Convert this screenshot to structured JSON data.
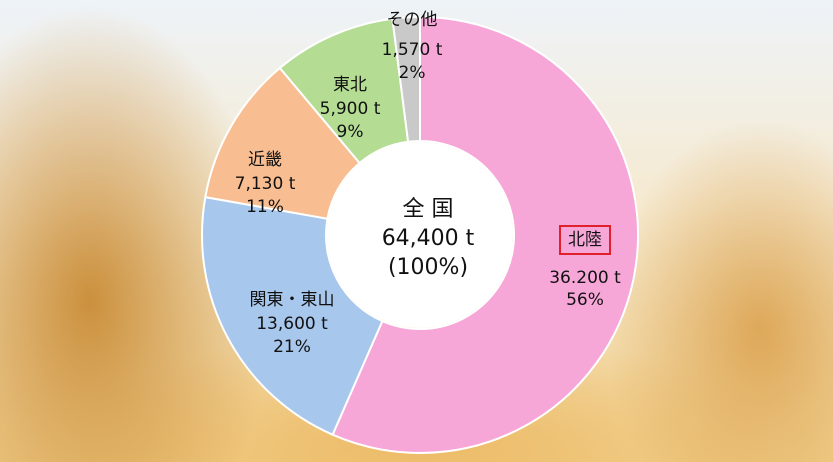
{
  "chart_data": {
    "type": "donut",
    "categories": [
      "北陸",
      "関東・東山",
      "近畿",
      "東北",
      "その他"
    ],
    "values": [
      56,
      21,
      11,
      9,
      2
    ],
    "value_labels": [
      "56%",
      "21%",
      "11%",
      "9%",
      "2%"
    ],
    "amounts": [
      "36.200 t",
      "13,600 t",
      "7,130 t",
      "5,900 t",
      "1,570 t"
    ],
    "colors": [
      "#f7a6d8",
      "#a8c7ec",
      "#f8bd90",
      "#b4dc93",
      "#c9c9c9"
    ],
    "highlight": "北陸",
    "center_label": [
      "全 国",
      "64,400 t",
      "(100%)"
    ]
  }
}
